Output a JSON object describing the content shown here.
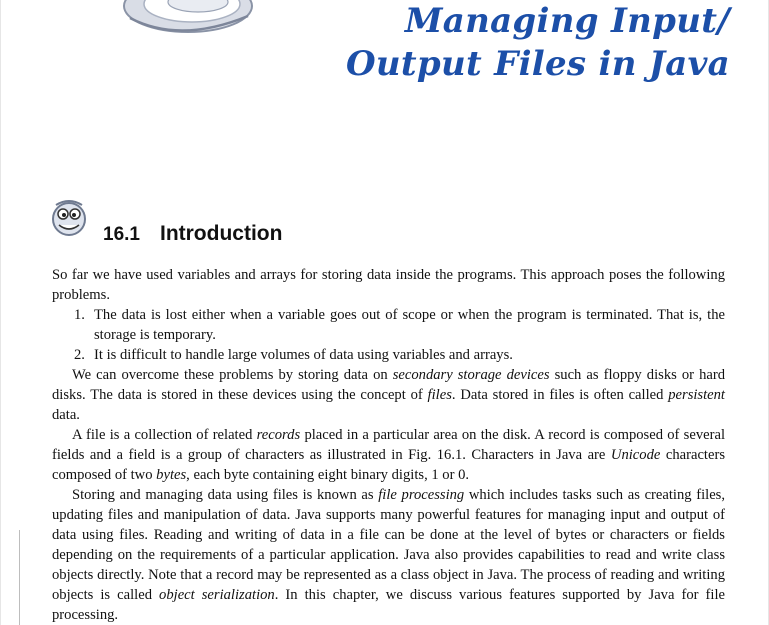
{
  "chapter": {
    "title_line1": "Managing Input/",
    "title_line2": "Output Files in Java"
  },
  "section": {
    "number": "16.1",
    "title": "Introduction"
  },
  "paragraph1": "So far we have used variables and arrays for storing data inside the programs. This approach poses the following problems.",
  "list": [
    {
      "num": "1.",
      "text": "The data is lost either when a variable goes out of scope or when the program is terminated. That is, the storage is temporary."
    },
    {
      "num": "2.",
      "text": "It is difficult to handle large volumes of data using variables and arrays."
    }
  ],
  "paragraph2": {
    "t1": "We can overcome these problems by storing data on ",
    "e1": "secondary storage devices",
    "t2": " such as floppy disks or hard disks. The data is stored in these devices using the concept of ",
    "e2": "files",
    "t3": ". Data stored in files is often called ",
    "e3": "persistent",
    "t4": " data."
  },
  "paragraph3": {
    "t1": "A file is a collection of related ",
    "e1": "records",
    "t2": " placed in a particular area on the disk. A record is composed of several fields and a field is a group of characters as illustrated in Fig. 16.1. Characters in Java are ",
    "e2": "Unicode",
    "t3": " characters composed of two ",
    "e3": "bytes",
    "t4": ", each byte containing eight binary digits, 1 or 0."
  },
  "paragraph4": {
    "t1": "Storing and managing data using files is known as ",
    "e1": "file processing",
    "t2": " which includes tasks such as creating files, updating files and manipulation of data. Java supports many powerful features for managing input and output of data using files. Reading and writing of data in a file can be done at the level of bytes or characters or fields depending on the requirements of a particular application. Java also provides capabilities to read and write class objects directly. Note that a record may be represented as a class object in Java. The process of reading and writing objects is called ",
    "e2": "object serialization",
    "t3": ". In this chapter, we discuss various features supported by Java for file processing."
  }
}
